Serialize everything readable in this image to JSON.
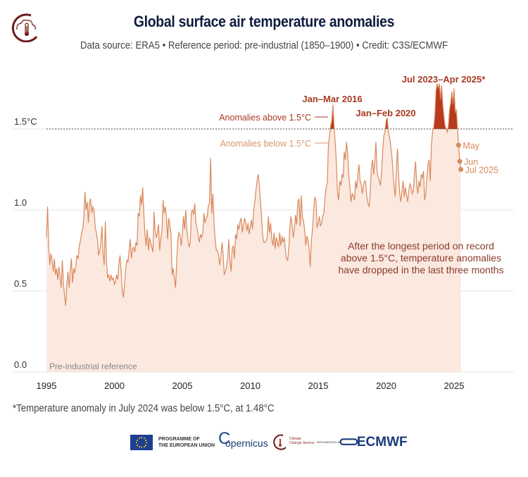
{
  "header": {
    "title": "Global surface air temperature anomalies",
    "subtitle": "Data source: ERA5 • Reference period: pre-industrial (1850–1900) • Credit: C3S/ECMWF",
    "logo_icon": "climate-thermometer-icon"
  },
  "colors": {
    "title": "#0f1b3d",
    "line": "#d9895b",
    "area_fill": "#fbe8df",
    "above_fill": "#b8391e",
    "annotation_dark": "#a83a22",
    "annotation_light": "#d9956c",
    "threshold_line": "#555555",
    "gridline": "#e6e6e6",
    "callout_text": "#8b3b2b"
  },
  "chart_data": {
    "type": "area",
    "title": "Global surface air temperature anomalies",
    "xlabel": "",
    "ylabel": "°C",
    "x_start": "1995-01",
    "x_end": "2025-07",
    "frequency": "monthly",
    "xlim": [
      1994.4,
      2029.6
    ],
    "ylim": [
      0.0,
      1.8
    ],
    "x_ticks": [
      1995,
      2000,
      2005,
      2010,
      2015,
      2020,
      2025
    ],
    "y_ticks": [
      {
        "value": 0.0,
        "label": "0.0"
      },
      {
        "value": 0.5,
        "label": "0.5"
      },
      {
        "value": 1.0,
        "label": "1.0"
      },
      {
        "value": 1.5,
        "label": "1.5°C"
      }
    ],
    "grid": true,
    "threshold": 1.5,
    "yearly_monthly_values": {
      "1995": [
        0.83,
        1.02,
        0.78,
        0.66,
        0.73,
        0.69,
        0.62,
        0.7,
        0.6,
        0.64,
        0.57,
        0.65
      ],
      "1996": [
        0.59,
        0.52,
        0.69,
        0.55,
        0.47,
        0.41,
        0.55,
        0.62,
        0.52,
        0.63,
        0.7,
        0.55
      ],
      "1997": [
        0.64,
        0.61,
        0.66,
        0.72,
        0.7,
        0.78,
        0.81,
        0.86,
        0.88,
        0.95,
        1.11,
        1.0
      ],
      "1998": [
        1.05,
        0.92,
        1.04,
        1.07,
        0.98,
        1.02,
        1.0,
        0.9,
        0.86,
        0.82,
        0.72,
        0.75
      ],
      "1999": [
        0.8,
        0.9,
        0.73,
        0.66,
        0.93,
        0.69,
        0.58,
        0.6,
        0.56,
        0.6,
        0.57,
        0.58
      ],
      "2000": [
        0.54,
        0.56,
        0.6,
        0.57,
        0.67,
        0.72,
        0.61,
        0.5,
        0.46,
        0.55,
        0.64,
        0.69
      ],
      "2001": [
        0.68,
        0.75,
        0.82,
        0.7,
        0.76,
        0.77,
        0.74,
        0.8,
        0.78,
        0.98,
        0.96,
        1.09
      ],
      "2002": [
        1.03,
        1.14,
        0.98,
        0.85,
        0.78,
        0.88,
        0.75,
        0.83,
        0.8,
        0.77,
        0.74,
        0.99
      ],
      "2003": [
        0.87,
        0.83,
        0.86,
        0.91,
        0.75,
        0.82,
        0.88,
        1.06,
        0.98,
        1.02,
        0.95,
        0.82
      ],
      "2004": [
        0.95,
        0.9,
        0.85,
        0.6,
        0.64,
        0.58,
        0.52,
        0.68,
        0.82,
        0.86,
        0.84,
        0.78
      ],
      "2005": [
        0.85,
        0.96,
        0.88,
        1.0,
        0.88,
        0.82,
        0.77,
        0.8,
        0.99,
        1.0,
        0.97,
        1.04
      ],
      "2006": [
        0.92,
        0.89,
        0.84,
        0.8,
        0.85,
        0.83,
        0.86,
        0.98,
        0.92,
        0.95,
        0.96,
        1.03
      ],
      "2007": [
        1.04,
        1.32,
        0.98,
        1.1,
        0.92,
        0.82,
        0.75,
        0.75,
        0.72,
        0.66,
        0.71,
        0.8
      ],
      "2008": [
        0.73,
        0.6,
        0.62,
        0.65,
        0.7,
        0.82,
        0.69,
        0.62,
        0.76,
        0.78,
        0.7,
        0.85
      ],
      "2009": [
        0.82,
        0.91,
        0.88,
        0.93,
        0.95,
        0.86,
        0.91,
        0.95,
        0.92,
        0.87,
        0.92,
        0.85
      ],
      "2010": [
        0.9,
        0.94,
        0.88,
        1.0,
        1.05,
        1.12,
        1.18,
        1.22,
        1.15,
        1.05,
        0.95,
        0.84
      ],
      "2011": [
        0.8,
        0.8,
        0.81,
        0.83,
        0.96,
        0.86,
        0.92,
        0.82,
        0.78,
        0.86,
        0.76,
        0.83
      ],
      "2012": [
        0.8,
        0.77,
        0.86,
        0.78,
        0.84,
        0.8,
        0.83,
        0.75,
        0.7,
        0.69,
        0.76,
        0.9
      ],
      "2013": [
        0.96,
        0.9,
        0.83,
        0.89,
        0.97,
        0.91,
        1.05,
        1.07,
        0.9,
        1.09,
        0.96,
        0.93
      ],
      "2014": [
        0.88,
        0.78,
        0.84,
        0.81,
        0.76,
        0.65,
        0.82,
        0.88,
        1.0,
        1.08,
        1.06,
        0.89
      ],
      "2015": [
        0.92,
        0.96,
        0.9,
        0.92,
        0.96,
        0.98,
        1.08,
        1.14,
        1.17,
        1.4,
        1.46,
        1.52
      ],
      "2016": [
        1.55,
        1.65,
        1.52,
        1.42,
        1.3,
        1.12,
        1.06,
        1.18,
        1.15,
        1.22,
        1.2,
        1.36
      ],
      "2017": [
        1.31,
        1.42,
        1.35,
        1.22,
        1.14,
        1.05,
        1.1,
        1.09,
        1.06,
        1.18,
        1.13,
        1.22
      ],
      "2018": [
        1.28,
        1.18,
        1.16,
        1.1,
        1.15,
        1.18,
        1.17,
        1.08,
        1.04,
        1.02,
        1.12,
        1.26
      ],
      "2019": [
        1.31,
        1.22,
        1.3,
        1.42,
        1.24,
        1.2,
        1.18,
        1.15,
        1.25,
        1.38,
        1.46,
        1.48
      ],
      "2020": [
        1.55,
        1.57,
        1.48,
        1.45,
        1.4,
        1.34,
        1.24,
        1.15,
        1.08,
        1.25,
        1.38,
        1.22
      ],
      "2021": [
        1.1,
        1.05,
        1.12,
        1.18,
        1.08,
        1.14,
        1.09,
        1.05,
        1.12,
        1.16,
        1.14,
        1.1
      ],
      "2022": [
        1.12,
        1.22,
        1.3,
        1.16,
        1.1,
        1.18,
        1.14,
        1.22,
        1.2,
        1.24,
        1.06,
        1.1
      ],
      "2023": [
        1.2,
        1.28,
        1.31,
        1.18,
        1.4,
        1.48,
        1.51,
        1.58,
        1.73,
        1.78,
        1.75,
        1.78
      ],
      "2024": [
        1.68,
        1.77,
        1.65,
        1.58,
        1.52,
        1.5,
        1.48,
        1.52,
        1.62,
        1.66,
        1.73,
        1.65
      ],
      "2025": [
        1.75,
        1.6,
        1.62,
        1.51,
        1.4,
        1.3,
        1.25
      ]
    },
    "annotations": [
      {
        "label": "Jan–Mar 2016",
        "style": "bold-dark"
      },
      {
        "label": "Jan–Feb 2020",
        "style": "bold-dark"
      },
      {
        "label": "Jul 2023–Apr 2025*",
        "style": "bold-dark"
      },
      {
        "label": "Anomalies above 1.5°C",
        "style": "dark"
      },
      {
        "label": "Anomalies below 1.5°C",
        "style": "light"
      },
      {
        "label": "Pre-industrial reference",
        "style": "grey"
      }
    ],
    "highlighted_points": [
      {
        "label": "May",
        "month": "2025-05",
        "value": 1.4
      },
      {
        "label": "Jun",
        "month": "2025-06",
        "value": 1.3
      },
      {
        "label": "Jul 2025",
        "month": "2025-07",
        "value": 1.25
      }
    ],
    "callout": [
      "After the longest period on record",
      "above 1.5°C, temperature anomalies",
      "have dropped in the last three months"
    ]
  },
  "footnote": "*Temperature anomaly in July 2024 was below 1.5°C, at 1.48°C",
  "footer_logos": {
    "eu_line1": "PROGRAMME OF",
    "eu_line2": "THE EUROPEAN UNION",
    "copernicus": "opernicus",
    "copernicus_c": "C",
    "c3s_line1": "Climate",
    "c3s_line2": "Change Service",
    "implemented_by": "IMPLEMENTED BY",
    "ecmwf": "ECMWF"
  }
}
